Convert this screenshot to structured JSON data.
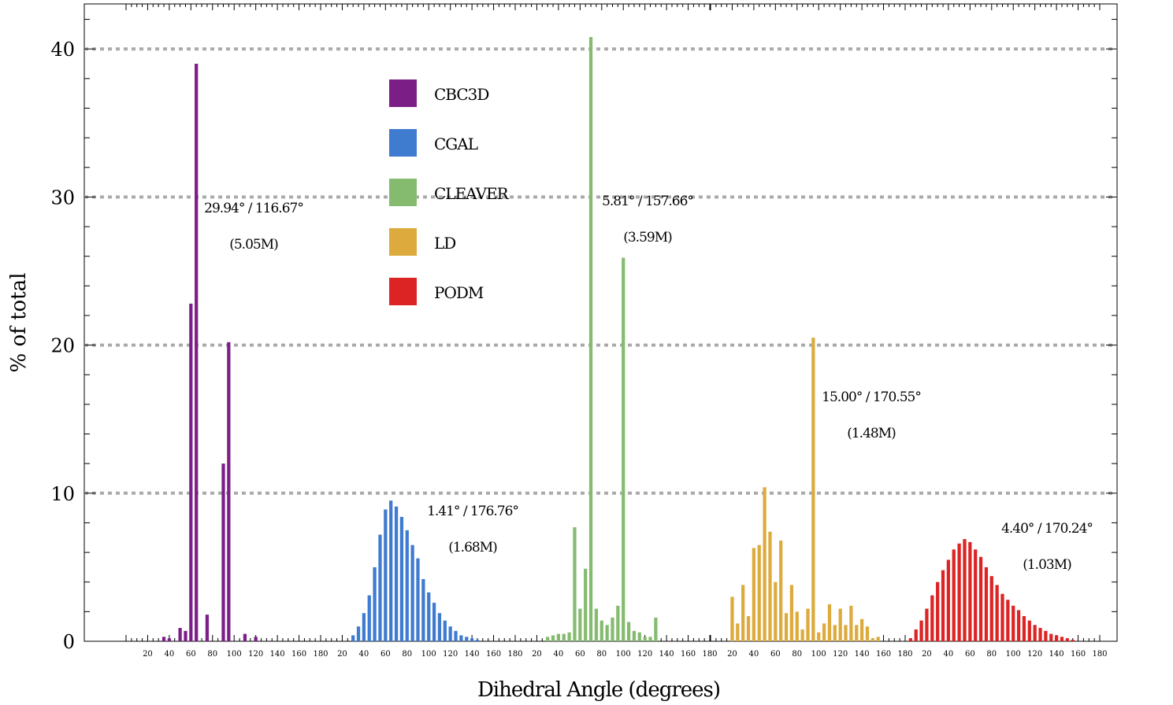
{
  "chart_data": {
    "type": "bar",
    "title": "",
    "xlabel": "Dihedral Angle (degrees)",
    "ylabel": "% of total",
    "ylim": [
      0,
      43
    ],
    "yticks": [
      0,
      10,
      20,
      30,
      40
    ],
    "grid": "horizontal dotted at 10, 20, 30, 40",
    "legend_position": "top-left-center",
    "x_tick_labels": [
      "20",
      "40",
      "60",
      "80",
      "100",
      "120",
      "140",
      "160",
      "180"
    ],
    "panel_xrange": [
      0,
      180
    ],
    "bin_width": 5,
    "series": [
      {
        "name": "CBC3D",
        "color": "#7b1f87",
        "annotation": [
          "29.94° / 116.67°",
          "(5.05M)"
        ],
        "bins": [
          [
            35,
            0.3
          ],
          [
            40,
            0.2
          ],
          [
            50,
            0.9
          ],
          [
            55,
            0.7
          ],
          [
            60,
            22.8
          ],
          [
            65,
            39.0
          ],
          [
            75,
            1.8
          ],
          [
            90,
            12.0
          ],
          [
            95,
            20.2
          ],
          [
            110,
            0.5
          ],
          [
            120,
            0.3
          ]
        ]
      },
      {
        "name": "CGAL",
        "color": "#3f7bcf",
        "annotation": [
          "1.41° / 176.76°",
          "(1.68M)"
        ],
        "bins": [
          [
            30,
            0.4
          ],
          [
            35,
            1.0
          ],
          [
            40,
            1.9
          ],
          [
            45,
            3.1
          ],
          [
            50,
            5.0
          ],
          [
            55,
            7.2
          ],
          [
            60,
            8.9
          ],
          [
            65,
            9.5
          ],
          [
            70,
            9.1
          ],
          [
            75,
            8.4
          ],
          [
            80,
            7.5
          ],
          [
            85,
            6.5
          ],
          [
            90,
            5.6
          ],
          [
            95,
            4.2
          ],
          [
            100,
            3.3
          ],
          [
            105,
            2.6
          ],
          [
            110,
            1.9
          ],
          [
            115,
            1.4
          ],
          [
            120,
            1.0
          ],
          [
            125,
            0.7
          ],
          [
            130,
            0.4
          ],
          [
            135,
            0.3
          ],
          [
            140,
            0.2
          ],
          [
            145,
            0.1
          ]
        ]
      },
      {
        "name": "CLEAVER",
        "color": "#85bb6f",
        "annotation": [
          "5.81° / 157.66°",
          "(3.59M)"
        ],
        "bins": [
          [
            30,
            0.3
          ],
          [
            35,
            0.4
          ],
          [
            40,
            0.5
          ],
          [
            45,
            0.5
          ],
          [
            50,
            0.6
          ],
          [
            55,
            7.7
          ],
          [
            60,
            2.2
          ],
          [
            65,
            4.9
          ],
          [
            70,
            40.8
          ],
          [
            75,
            2.2
          ],
          [
            80,
            1.4
          ],
          [
            85,
            1.1
          ],
          [
            90,
            1.6
          ],
          [
            95,
            2.4
          ],
          [
            100,
            25.9
          ],
          [
            105,
            1.3
          ],
          [
            110,
            0.7
          ],
          [
            115,
            0.6
          ],
          [
            120,
            0.3
          ],
          [
            125,
            0.3
          ],
          [
            130,
            1.6
          ]
        ]
      },
      {
        "name": "LD",
        "color": "#ddaa3d",
        "annotation": [
          "15.00° / 170.55°",
          "(1.48M)"
        ],
        "bins": [
          [
            20,
            3.0
          ],
          [
            25,
            1.2
          ],
          [
            30,
            3.8
          ],
          [
            35,
            1.7
          ],
          [
            40,
            6.3
          ],
          [
            45,
            6.5
          ],
          [
            50,
            10.4
          ],
          [
            55,
            7.4
          ],
          [
            60,
            4.0
          ],
          [
            65,
            6.8
          ],
          [
            70,
            1.9
          ],
          [
            75,
            3.8
          ],
          [
            80,
            2.0
          ],
          [
            85,
            0.8
          ],
          [
            90,
            2.2
          ],
          [
            95,
            20.5
          ],
          [
            100,
            0.6
          ],
          [
            105,
            1.2
          ],
          [
            110,
            2.5
          ],
          [
            115,
            1.1
          ],
          [
            120,
            2.2
          ],
          [
            125,
            1.1
          ],
          [
            130,
            2.4
          ],
          [
            135,
            1.1
          ],
          [
            140,
            1.5
          ],
          [
            145,
            1.0
          ],
          [
            150,
            0.2
          ],
          [
            155,
            0.3
          ]
        ]
      },
      {
        "name": "PODM",
        "color": "#dd2424",
        "annotation": [
          "4.40° / 170.24°",
          "(1.03M)"
        ],
        "bins": [
          [
            5,
            0.2
          ],
          [
            10,
            0.8
          ],
          [
            15,
            1.4
          ],
          [
            20,
            2.2
          ],
          [
            25,
            3.1
          ],
          [
            30,
            4.0
          ],
          [
            35,
            4.8
          ],
          [
            40,
            5.5
          ],
          [
            45,
            6.2
          ],
          [
            50,
            6.6
          ],
          [
            55,
            6.9
          ],
          [
            60,
            6.7
          ],
          [
            65,
            6.2
          ],
          [
            70,
            5.7
          ],
          [
            75,
            5.0
          ],
          [
            80,
            4.4
          ],
          [
            85,
            3.8
          ],
          [
            90,
            3.2
          ],
          [
            95,
            2.8
          ],
          [
            100,
            2.4
          ],
          [
            105,
            2.1
          ],
          [
            110,
            1.7
          ],
          [
            115,
            1.4
          ],
          [
            120,
            1.1
          ],
          [
            125,
            0.9
          ],
          [
            130,
            0.7
          ],
          [
            135,
            0.5
          ],
          [
            140,
            0.4
          ],
          [
            145,
            0.3
          ],
          [
            150,
            0.2
          ],
          [
            155,
            0.1
          ]
        ]
      }
    ]
  }
}
